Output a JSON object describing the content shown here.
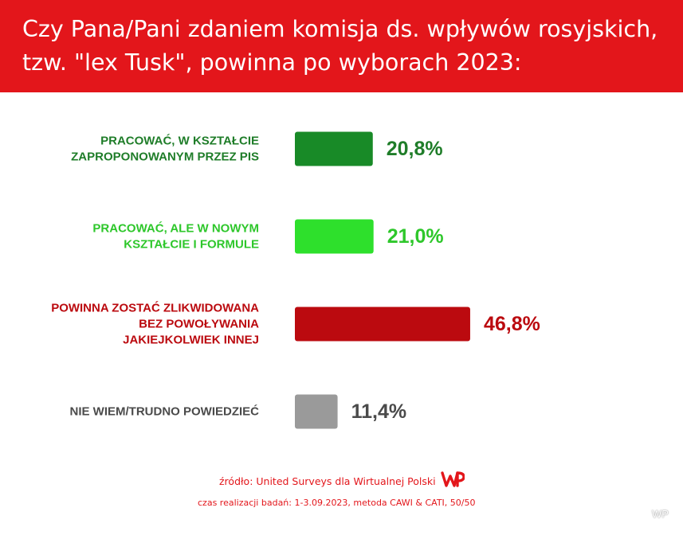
{
  "header": {
    "title_line1": "Czy Pana/Pani zdaniem komisja ds. wpływów rosyjskich,",
    "title_line2": "tzw. \"lex Tusk\", powinna po wyborach 2023:"
  },
  "chart_data": {
    "type": "bar",
    "orientation": "horizontal",
    "title": "Czy Pana/Pani zdaniem komisja ds. wpływów rosyjskich, tzw. \"lex Tusk\", powinna po wyborach 2023:",
    "categories": [
      [
        "PRACOWAĆ, W KSZTAŁCIE",
        "ZAPROPONOWANYM PRZEZ PIS"
      ],
      [
        "PRACOWAĆ, ALE W NOWYM",
        "KSZTAŁCIE I FORMULE"
      ],
      [
        "POWINNA ZOSTAĆ ZLIKWIDOWANA",
        "BEZ POWOŁYWANIA",
        "JAKIEJKOLWIEK INNEJ"
      ],
      [
        "NIE WIEM/TRUDNO POWIEDZIEĆ"
      ]
    ],
    "values": [
      20.8,
      21.0,
      46.8,
      11.4
    ],
    "value_labels": [
      "20,8%",
      "21,0%",
      "46,8%",
      "11,4%"
    ],
    "colors": [
      "#188a27",
      "#2ee02c",
      "#bb0a0f",
      "#9a9a9a"
    ],
    "label_colors": [
      "#1f7d29",
      "#2ec72b",
      "#bb0a0f",
      "#4a4a4a"
    ],
    "grid": false,
    "legend": "none"
  },
  "footer": {
    "source": "źródło: United Surveys dla Wirtualnej Polski",
    "logo": "WP",
    "method": "czas realizacji badań: 1-3.09.2023, metoda CAWI & CATI, 50/50",
    "watermark": "WP"
  }
}
